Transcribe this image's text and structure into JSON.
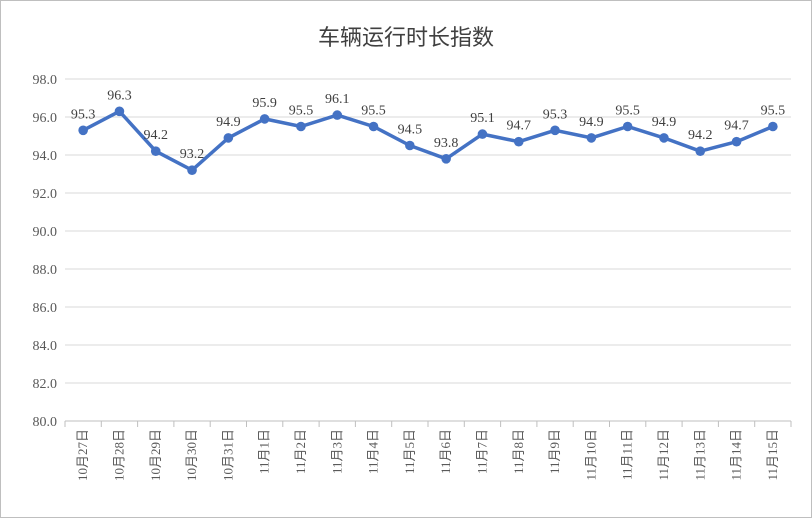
{
  "chart_data": {
    "type": "line",
    "title": "车辆运行时长指数",
    "categories": [
      "10月27日",
      "10月28日",
      "10月29日",
      "10月30日",
      "10月31日",
      "11月1日",
      "11月2日",
      "11月3日",
      "11月4日",
      "11月5日",
      "11月6日",
      "11月7日",
      "11月8日",
      "11月9日",
      "11月10日",
      "11月11日",
      "11月12日",
      "11月13日",
      "11月14日",
      "11月15日"
    ],
    "series": [
      {
        "values": [
          95.3,
          96.3,
          94.2,
          93.2,
          94.9,
          95.9,
          95.5,
          96.1,
          95.5,
          94.5,
          93.8,
          95.1,
          94.7,
          95.3,
          94.9,
          95.5,
          94.9,
          94.2,
          94.7,
          95.5
        ]
      }
    ],
    "data_labels": [
      "95.3",
      "96.3",
      "94.2",
      "93.2",
      "94.9",
      "95.9",
      "95.5",
      "96.1",
      "95.5",
      "94.5",
      "93.8",
      "95.1",
      "94.7",
      "95.3",
      "94.9",
      "95.5",
      "94.9",
      "94.2",
      "94.7",
      "95.5"
    ],
    "yticks": [
      "80.0",
      "82.0",
      "84.0",
      "86.0",
      "88.0",
      "90.0",
      "92.0",
      "94.0",
      "96.0",
      "98.0"
    ],
    "ylim": [
      80,
      98
    ],
    "xlabel": "",
    "ylabel": "",
    "grid": true,
    "legend": "none",
    "line_color": "#4472c4"
  }
}
